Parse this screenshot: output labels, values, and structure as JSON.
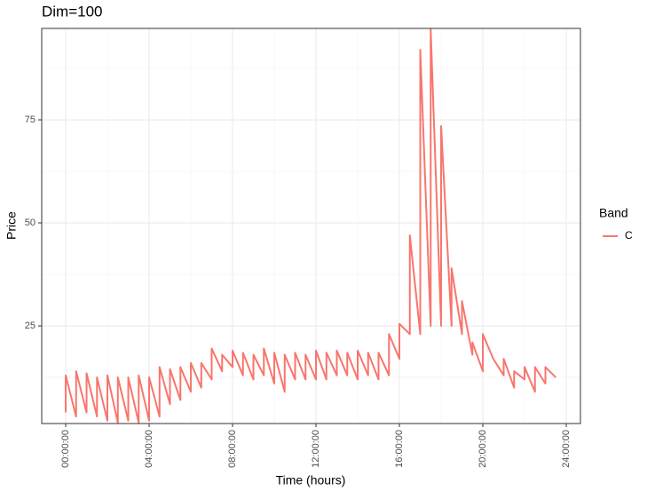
{
  "chart_data": {
    "type": "line",
    "title": "Dim=100",
    "x_label": "Time (hours)",
    "y_label": "Price",
    "legend_title": "Band",
    "legend_position": "right",
    "grid": true,
    "x": [
      0,
      0,
      0.5,
      0.5,
      1,
      1,
      1.5,
      1.5,
      2,
      2,
      2.5,
      2.5,
      3,
      3,
      3.5,
      3.5,
      4,
      4,
      4.5,
      4.5,
      5,
      5,
      5.5,
      5.5,
      6,
      6,
      6.5,
      6.5,
      7,
      7,
      7.5,
      7.5,
      8,
      8,
      8.5,
      8.5,
      9,
      9,
      9.5,
      9.5,
      10,
      10,
      10.5,
      10.5,
      11,
      11,
      11.5,
      11.5,
      12,
      12,
      12.5,
      12.5,
      13,
      13,
      13.5,
      13.5,
      14,
      14,
      14.5,
      14.5,
      15,
      15,
      15.5,
      15.5,
      16,
      16,
      16.5,
      16.5,
      17,
      17,
      17.5,
      17.5,
      18,
      18,
      18.5,
      18.5,
      19,
      19,
      19.5,
      19.5,
      20,
      20,
      20.5,
      20.5,
      21,
      21,
      21.5,
      21.5,
      22,
      22,
      22.5,
      22.5,
      23,
      23,
      23.5
    ],
    "series": [
      {
        "name": "C",
        "color": "#F8766D",
        "values": [
          4,
          13,
          3,
          14,
          4,
          13.5,
          3,
          12.5,
          2,
          13,
          1.5,
          12.5,
          2,
          12.5,
          1.5,
          13,
          2,
          12.5,
          3,
          15,
          6,
          14.5,
          7,
          15,
          9,
          16,
          10,
          16,
          12,
          19.5,
          14,
          18,
          15,
          19,
          13,
          18.5,
          12,
          18,
          13,
          19.5,
          11,
          18.5,
          9,
          18,
          12,
          18.5,
          12,
          18,
          12,
          19,
          12,
          18.5,
          13,
          19,
          13,
          18.5,
          12,
          19,
          13,
          18.5,
          12,
          18.5,
          13,
          23,
          17,
          25.5,
          23,
          47,
          23,
          92,
          25,
          97,
          25,
          73.5,
          25,
          39,
          23,
          31,
          18,
          21,
          14,
          23,
          17,
          17,
          13,
          17,
          10,
          14,
          12,
          15,
          9,
          15,
          11,
          15,
          12.5
        ]
      }
    ],
    "xlim": [
      -1.15,
      24.68
    ],
    "xticks": [
      {
        "value": 0,
        "label": "00:00:00"
      },
      {
        "value": 4,
        "label": "04:00:00"
      },
      {
        "value": 8,
        "label": "08:00:00"
      },
      {
        "value": 12,
        "label": "12:00:00"
      },
      {
        "value": 16,
        "label": "16:00:00"
      },
      {
        "value": 20,
        "label": "20:00:00"
      },
      {
        "value": 24,
        "label": "24:00:00"
      }
    ],
    "ylim": [
      1.3,
      97.2
    ],
    "yticks": [
      25,
      50,
      75
    ]
  }
}
